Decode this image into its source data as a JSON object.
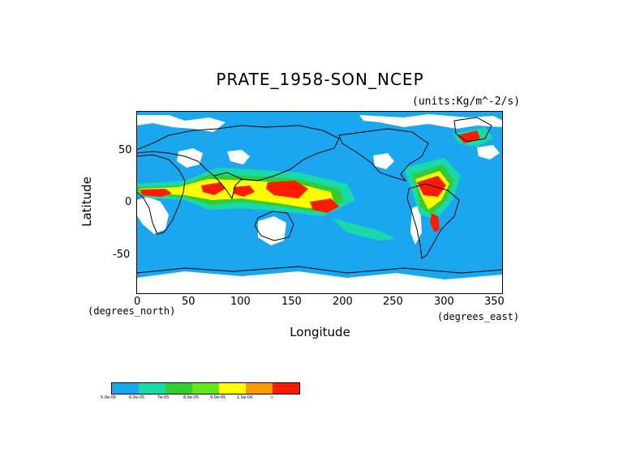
{
  "title": "PRATE_1958-SON_NCEP",
  "units": "(units:Kg/m^-2/s)",
  "y_axis": {
    "label": "Latitude",
    "ticks": [
      "50",
      "0",
      "-50"
    ],
    "coord_label": "(degrees_north)"
  },
  "x_axis": {
    "label": "Longitude",
    "ticks": [
      "0",
      "50",
      "100",
      "150",
      "200",
      "250",
      "300",
      "350"
    ],
    "coord_label": "(degrees_east)"
  },
  "colors": {
    "ocean_base": "#1aa7f0",
    "missing": "#ffffff",
    "coast": "#000000"
  },
  "legend": {
    "colors": [
      "#1aa7f0",
      "#19d9a8",
      "#33cc33",
      "#66e619",
      "#ffff00",
      "#ff9900",
      "#ff1a00"
    ],
    "labels": [
      "5.0e-05",
      "6.0e-05",
      "7e-05",
      "8.0e-05",
      "9.0e-05",
      "1.0e-04",
      "∞"
    ]
  }
}
